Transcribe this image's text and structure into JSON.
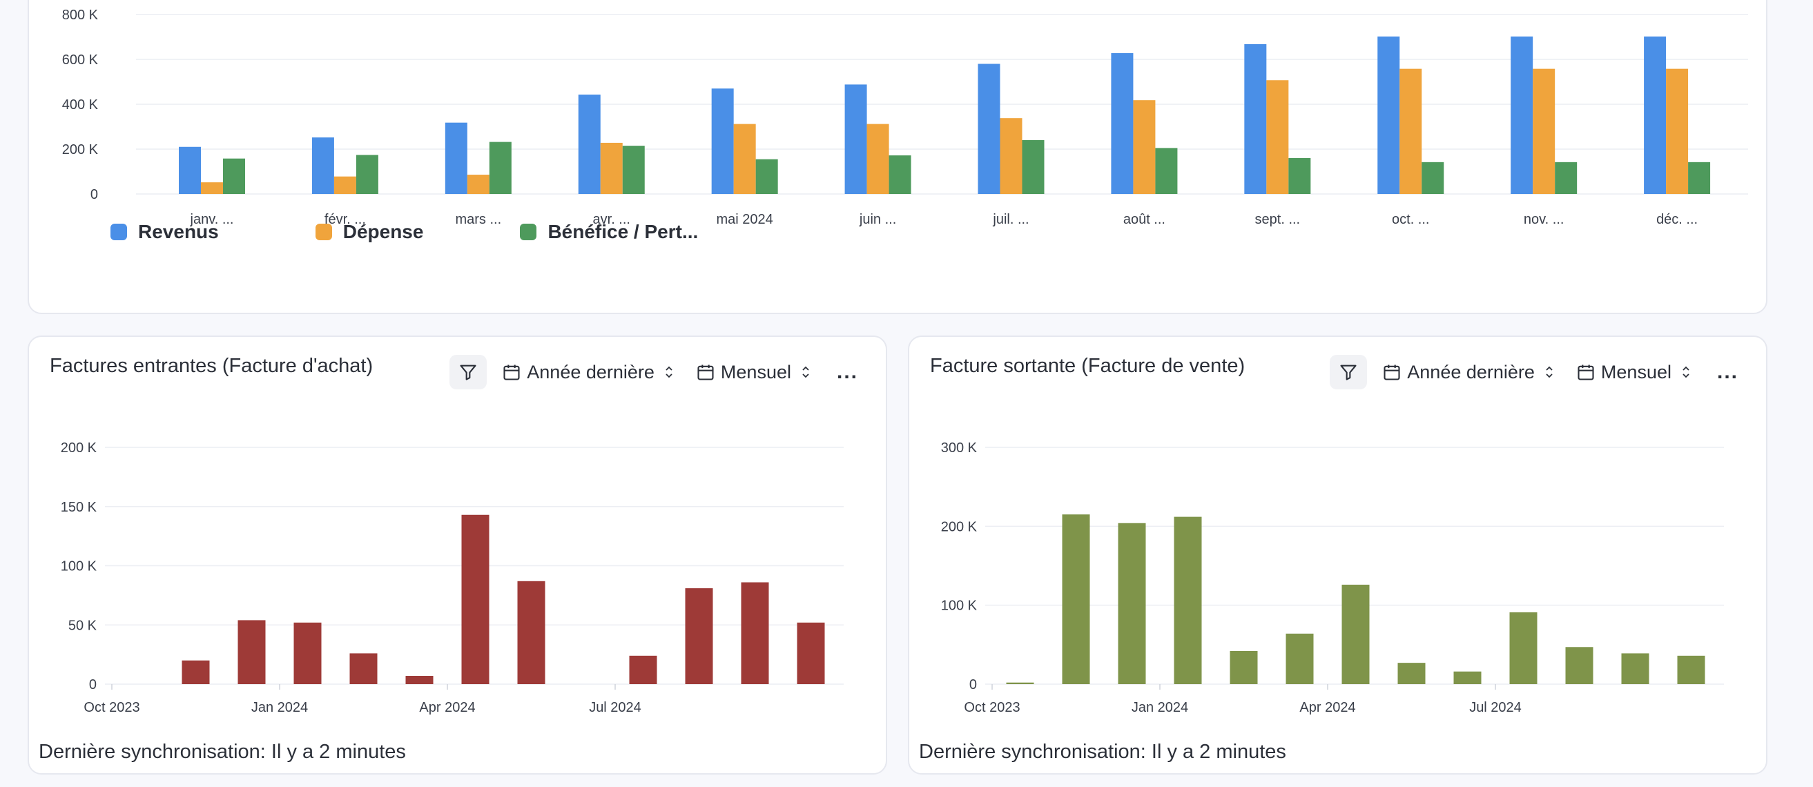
{
  "colors": {
    "revenus": "#4a8fe7",
    "depense": "#f0a43c",
    "benefice": "#4e9a5c",
    "incoming": "#9e3a37",
    "outgoing": "#7f944a"
  },
  "chart_data": [
    {
      "id": "overview",
      "type": "bar",
      "categories": [
        "janv. ...",
        "févr. ...",
        "mars ...",
        "avr. ...",
        "mai 2024",
        "juin ...",
        "juil. ...",
        "août ...",
        "sept. ...",
        "oct. ...",
        "nov. ...",
        "déc. ..."
      ],
      "series": [
        {
          "name": "Revenus",
          "values": [
            210000,
            252000,
            318000,
            443000,
            470000,
            488000,
            580000,
            628000,
            668000,
            702000,
            702000,
            702000
          ]
        },
        {
          "name": "Dépense",
          "values": [
            52000,
            78000,
            86000,
            228000,
            312000,
            312000,
            338000,
            418000,
            507000,
            558000,
            558000,
            558000
          ]
        },
        {
          "name": "Bénéfice / Pert...",
          "values": [
            158000,
            174000,
            232000,
            215000,
            155000,
            172000,
            240000,
            205000,
            160000,
            142000,
            142000,
            142000
          ]
        }
      ],
      "yticks": [
        "0",
        "200 K",
        "400 K",
        "600 K",
        "800 K"
      ],
      "ylim": [
        0,
        800000
      ],
      "grid": true,
      "legend": "bottom-left"
    },
    {
      "id": "incoming",
      "type": "bar",
      "title": "Factures entrantes (Facture d'achat)",
      "x": [
        "2023-10",
        "2023-11",
        "2023-12",
        "2024-01",
        "2024-02",
        "2024-03",
        "2024-04",
        "2024-05",
        "2024-06",
        "2024-07",
        "2024-08",
        "2024-09",
        "2024-10"
      ],
      "values": [
        0,
        20000,
        54000,
        52000,
        26000,
        7000,
        143000,
        87000,
        0,
        24000,
        81000,
        86000,
        52000
      ],
      "xticks": [
        {
          "label": "Oct 2023",
          "x": "2023-10"
        },
        {
          "label": "Jan 2024",
          "x": "2024-01"
        },
        {
          "label": "Apr 2024",
          "x": "2024-04"
        },
        {
          "label": "Jul 2024",
          "x": "2024-07"
        }
      ],
      "yticks": [
        "0",
        "50 K",
        "100 K",
        "150 K",
        "200 K"
      ],
      "ylim": [
        0,
        200000
      ],
      "grid": true
    },
    {
      "id": "outgoing",
      "type": "bar",
      "title": "Facture sortante (Facture de vente)",
      "x": [
        "2023-10",
        "2023-11",
        "2023-12",
        "2024-01",
        "2024-02",
        "2024-03",
        "2024-04",
        "2024-05",
        "2024-06",
        "2024-07",
        "2024-08",
        "2024-09",
        "2024-10"
      ],
      "values": [
        2000,
        215000,
        204000,
        212000,
        42000,
        64000,
        126000,
        27000,
        16000,
        91000,
        47000,
        39000,
        36000
      ],
      "xticks": [
        {
          "label": "Oct 2023",
          "x": "2023-10"
        },
        {
          "label": "Jan 2024",
          "x": "2024-01"
        },
        {
          "label": "Apr 2024",
          "x": "2024-04"
        },
        {
          "label": "Jul 2024",
          "x": "2024-07"
        }
      ],
      "yticks": [
        "0",
        "100 K",
        "200 K",
        "300 K"
      ],
      "ylim": [
        0,
        300000
      ],
      "grid": true
    }
  ],
  "widgets": {
    "left": {
      "title": "Factures entrantes (Facture d'achat)",
      "period": "Année dernière",
      "interval": "Mensuel",
      "more": "...",
      "sync": "Dernière synchronisation: Il y a 2 minutes"
    },
    "right": {
      "title": "Facture sortante (Facture de vente)",
      "period": "Année dernière",
      "interval": "Mensuel",
      "more": "...",
      "sync": "Dernière synchronisation: Il y a 2 minutes"
    }
  },
  "legend": [
    {
      "label": "Revenus",
      "color_key": "revenus"
    },
    {
      "label": "Dépense",
      "color_key": "depense"
    },
    {
      "label": "Bénéfice / Pert...",
      "color_key": "benefice"
    }
  ]
}
